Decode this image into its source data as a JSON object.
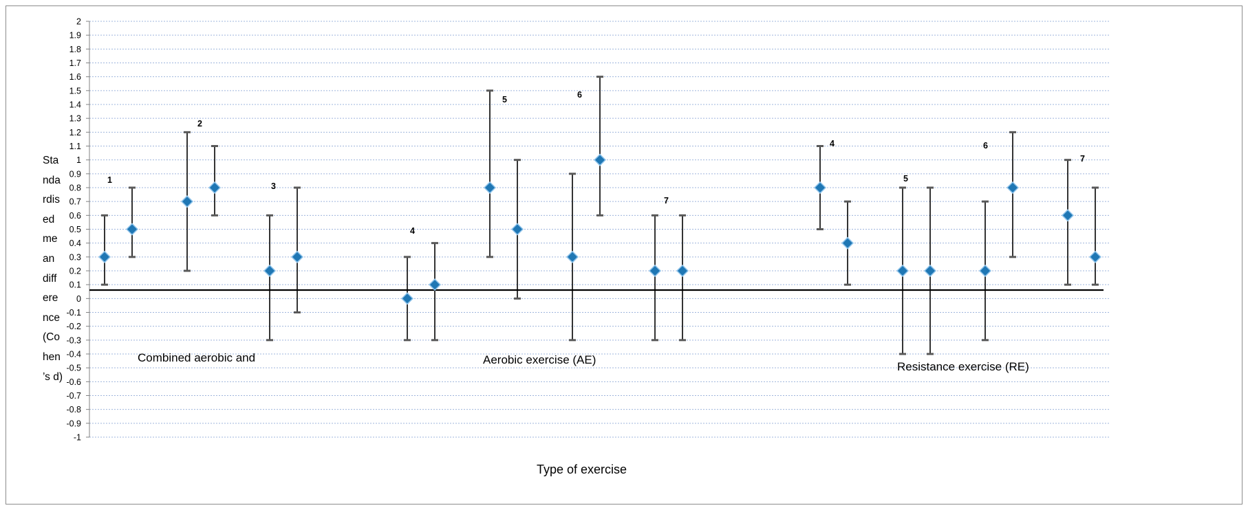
{
  "chart_data": {
    "type": "scatter",
    "xlabel": "Type of exercise",
    "ylabel_lines": [
      "Sta",
      "nda",
      "rdis",
      "ed",
      "me",
      "an",
      "diff",
      "ere",
      "nce",
      "(Co",
      "hen",
      "’s d)"
    ],
    "ylim": [
      -1,
      2
    ],
    "yticks": [
      "2",
      "1.9",
      "1.8",
      "1.7",
      "1.6",
      "1.5",
      "1.4",
      "1.3",
      "1.2",
      "1.1",
      "1",
      "0.9",
      "0.8",
      "0.7",
      "0.6",
      "0.5",
      "0.4",
      "0.3",
      "0.2",
      "0.1",
      "0",
      "-0.1",
      "-0.2",
      "-0.3",
      "-0.4",
      "-0.5",
      "-0.6",
      "-0.7",
      "-0.8",
      "-0.9",
      "-1"
    ],
    "grid": true,
    "groups": [
      {
        "label": "Combined aerobic and"
      },
      {
        "label": "Aerobic exercise  (AE)"
      },
      {
        "label": "Resistance exercise (RE)"
      }
    ],
    "study_labels": [
      "1",
      "2",
      "3",
      "4",
      "5",
      "6",
      "7",
      "4",
      "5",
      "6",
      "7"
    ],
    "points": [
      {
        "x": 1,
        "y": 0.3,
        "lower": 0.1,
        "upper": 0.6
      },
      {
        "x": 2,
        "y": 0.5,
        "lower": 0.3,
        "upper": 0.8
      },
      {
        "x": 4,
        "y": 0.7,
        "lower": 0.2,
        "upper": 1.2
      },
      {
        "x": 5,
        "y": 0.8,
        "lower": 0.6,
        "upper": 1.1
      },
      {
        "x": 7,
        "y": 0.2,
        "lower": -0.3,
        "upper": 0.6
      },
      {
        "x": 8,
        "y": 0.3,
        "lower": -0.1,
        "upper": 0.8
      },
      {
        "x": 12,
        "y": 0.0,
        "lower": -0.3,
        "upper": 0.3
      },
      {
        "x": 13,
        "y": 0.1,
        "lower": -0.3,
        "upper": 0.4
      },
      {
        "x": 15,
        "y": 0.8,
        "lower": 0.3,
        "upper": 1.5
      },
      {
        "x": 16,
        "y": 0.5,
        "lower": 0.0,
        "upper": 1.0
      },
      {
        "x": 18,
        "y": 0.3,
        "lower": -0.3,
        "upper": 0.9
      },
      {
        "x": 19,
        "y": 1.0,
        "lower": 0.6,
        "upper": 1.6
      },
      {
        "x": 21,
        "y": 0.2,
        "lower": -0.3,
        "upper": 0.6
      },
      {
        "x": 22,
        "y": 0.2,
        "lower": -0.3,
        "upper": 0.6
      },
      {
        "x": 27,
        "y": 0.8,
        "lower": 0.5,
        "upper": 1.1
      },
      {
        "x": 28,
        "y": 0.4,
        "lower": 0.1,
        "upper": 0.7
      },
      {
        "x": 30,
        "y": 0.2,
        "lower": -0.4,
        "upper": 0.8
      },
      {
        "x": 31,
        "y": 0.2,
        "lower": -0.4,
        "upper": 0.8
      },
      {
        "x": 33,
        "y": 0.2,
        "lower": -0.3,
        "upper": 0.7
      },
      {
        "x": 34,
        "y": 0.8,
        "lower": 0.3,
        "upper": 1.2
      },
      {
        "x": 36,
        "y": 0.6,
        "lower": 0.1,
        "upper": 1.0
      },
      {
        "x": 37,
        "y": 0.3,
        "lower": 0.1,
        "upper": 0.8
      }
    ],
    "marker_color": "#1f77b4",
    "marker_edge_color": "#8fc3ea",
    "whisker_color": "#000000",
    "cap_color": "#595959"
  }
}
